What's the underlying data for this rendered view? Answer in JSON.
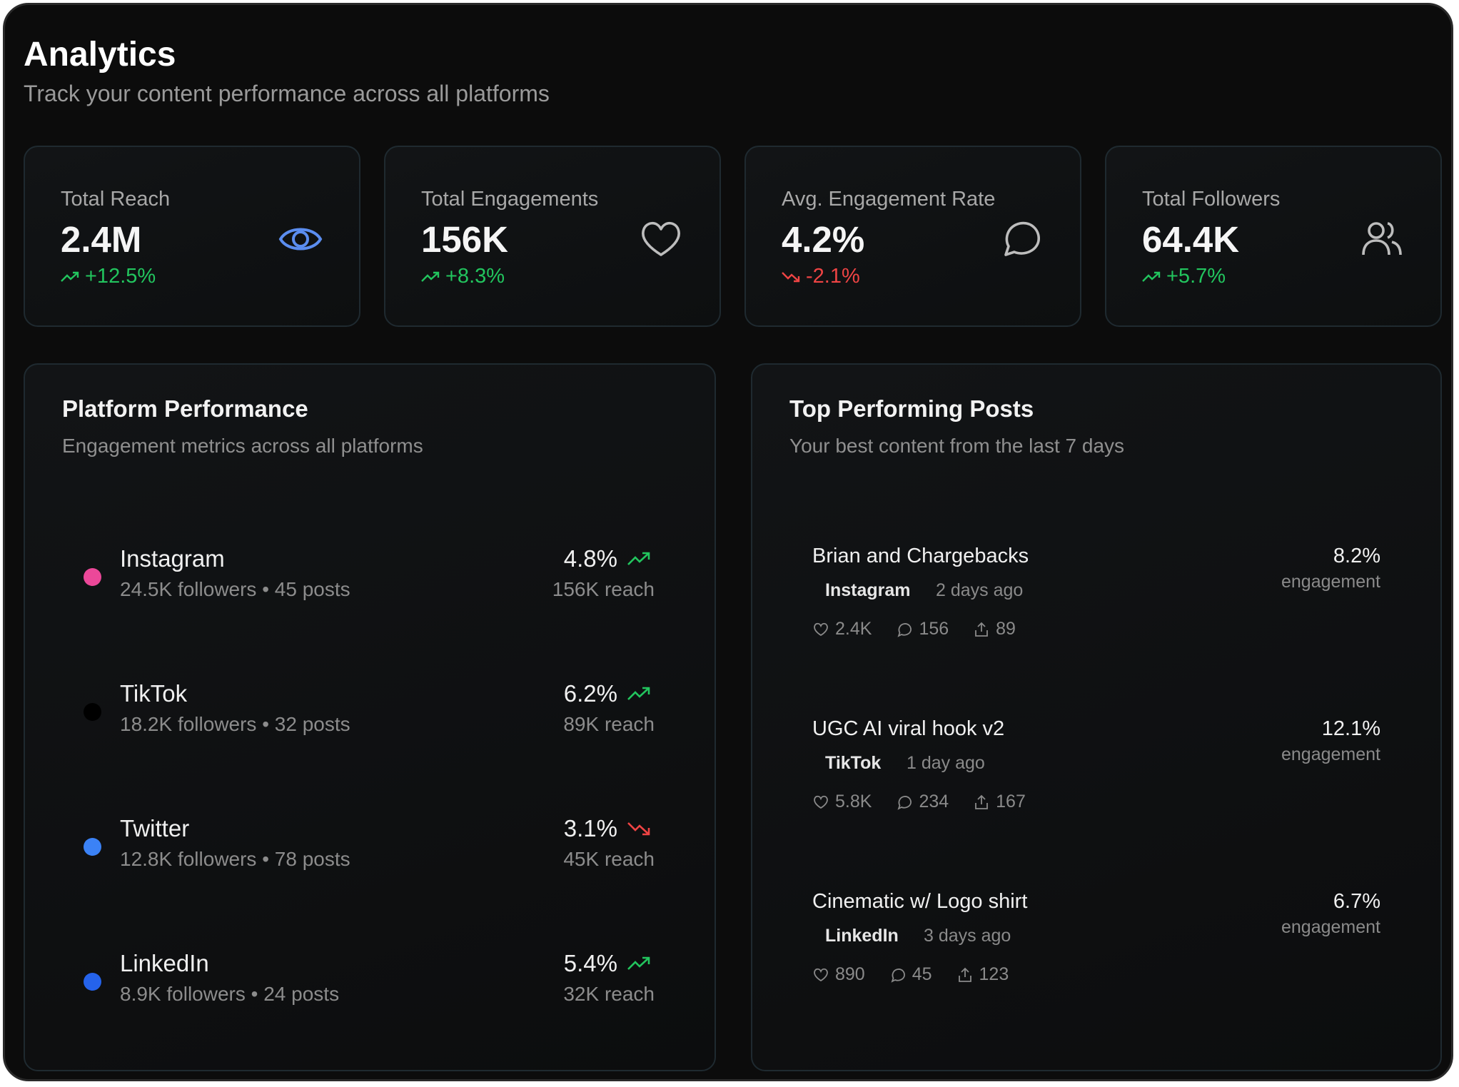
{
  "header": {
    "title": "Analytics",
    "subtitle": "Track your content performance across all platforms"
  },
  "colors": {
    "up": "#22c55e",
    "down": "#ef4444",
    "accent": "#5b8def"
  },
  "stats": [
    {
      "label": "Total Reach",
      "value": "2.4M",
      "change": "+12.5%",
      "trend": "up",
      "icon": "eye-icon"
    },
    {
      "label": "Total Engagements",
      "value": "156K",
      "change": "+8.3%",
      "trend": "up",
      "icon": "heart-icon"
    },
    {
      "label": "Avg. Engagement Rate",
      "value": "4.2%",
      "change": "-2.1%",
      "trend": "down",
      "icon": "message-circle-icon"
    },
    {
      "label": "Total Followers",
      "value": "64.4K",
      "change": "+5.7%",
      "trend": "up",
      "icon": "users-icon"
    }
  ],
  "platform_panel": {
    "title": "Platform Performance",
    "subtitle": "Engagement metrics across all platforms",
    "platforms": [
      {
        "name": "Instagram",
        "meta": "24.5K followers • 45 posts",
        "rate": "4.8%",
        "reach": "156K reach",
        "trend": "up",
        "color": "#ec4899"
      },
      {
        "name": "TikTok",
        "meta": "18.2K followers • 32 posts",
        "rate": "6.2%",
        "reach": "89K reach",
        "trend": "up",
        "color": "#000000"
      },
      {
        "name": "Twitter",
        "meta": "12.8K followers • 78 posts",
        "rate": "3.1%",
        "reach": "45K reach",
        "trend": "down",
        "color": "#3b82f6"
      },
      {
        "name": "LinkedIn",
        "meta": "8.9K followers • 24 posts",
        "rate": "5.4%",
        "reach": "32K reach",
        "trend": "up",
        "color": "#2563eb"
      }
    ]
  },
  "posts_panel": {
    "title": "Top Performing Posts",
    "subtitle": "Your best content from the last 7 days",
    "posts": [
      {
        "title": "Brian and Chargebacks",
        "platform": "Instagram",
        "time": "2 days ago",
        "likes": "2.4K",
        "comments": "156",
        "shares": "89",
        "rate": "8.2%",
        "rate_label": "engagement"
      },
      {
        "title": "UGC AI viral hook v2",
        "platform": "TikTok",
        "time": "1 day ago",
        "likes": "5.8K",
        "comments": "234",
        "shares": "167",
        "rate": "12.1%",
        "rate_label": "engagement"
      },
      {
        "title": "Cinematic w/ Logo shirt",
        "platform": "LinkedIn",
        "time": "3 days ago",
        "likes": "890",
        "comments": "45",
        "shares": "123",
        "rate": "6.7%",
        "rate_label": "engagement"
      }
    ]
  }
}
